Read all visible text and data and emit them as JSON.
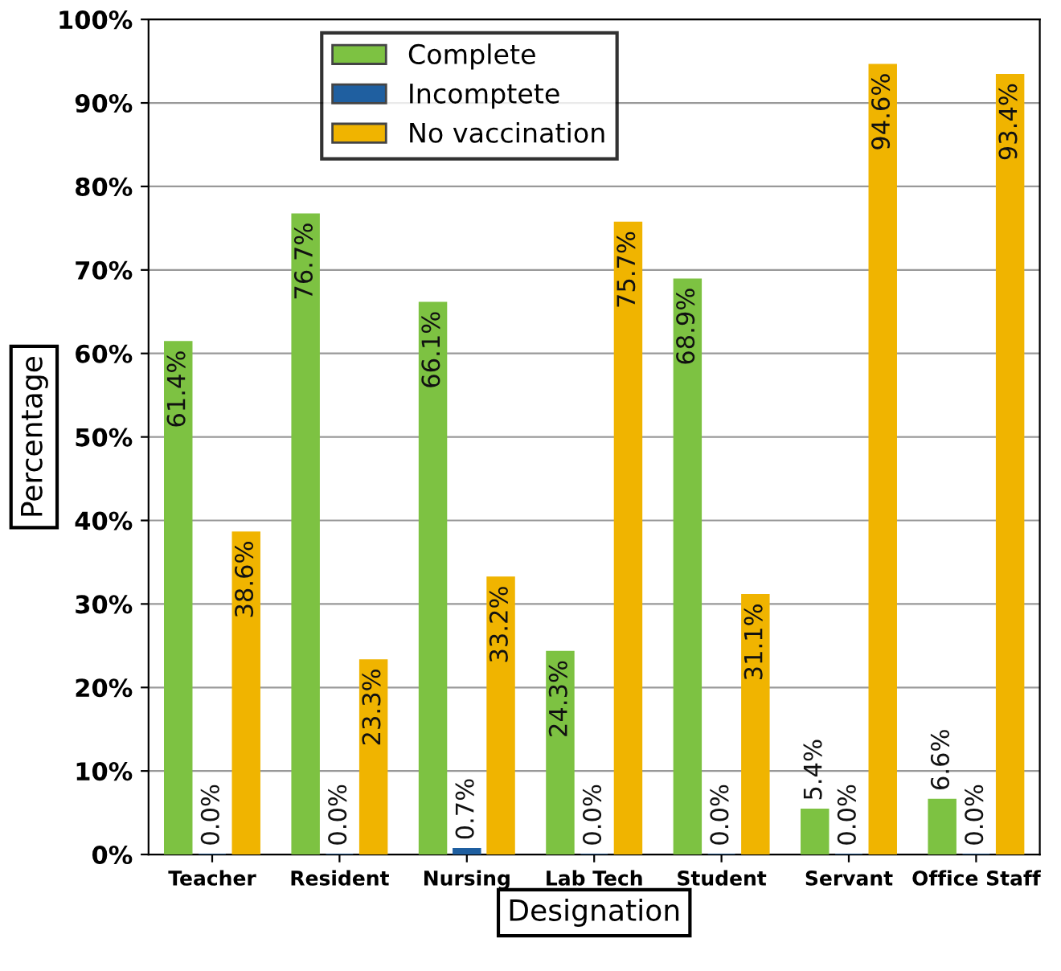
{
  "chart_data": {
    "type": "bar",
    "xlabel": "Designation",
    "ylabel": "Percentage",
    "categories": [
      "Teacher",
      "Resident",
      "Nursing",
      "Lab Tech",
      "Student",
      "Servant",
      "Office Staff"
    ],
    "series": [
      {
        "name": "Complete",
        "color": "#7dc242",
        "values": [
          61.4,
          76.7,
          66.1,
          24.3,
          68.9,
          5.4,
          6.6
        ],
        "value_labels": [
          "61.4%",
          "76.7%",
          "66.1%",
          "24.3%",
          "68.9%",
          "5.4%",
          "6.6%"
        ]
      },
      {
        "name": "Incomptete",
        "color": "#1f5fa0",
        "values": [
          0.0,
          0.0,
          0.7,
          0.0,
          0.0,
          0.0,
          0.0
        ],
        "value_labels": [
          "0.0%",
          "0.0%",
          "0.7%",
          "0.0%",
          "0.0%",
          "0.0%",
          "0.0%"
        ]
      },
      {
        "name": "No vaccination",
        "color": "#f0b400",
        "values": [
          38.6,
          23.3,
          33.2,
          75.7,
          31.1,
          94.6,
          93.4
        ],
        "value_labels": [
          "38.6%",
          "23.3%",
          "33.2%",
          "75.7%",
          "31.1%",
          "94.6%",
          "93.4%"
        ]
      }
    ],
    "ylim": [
      0,
      100
    ],
    "yticks": [
      {
        "value": 0,
        "label": "0%"
      },
      {
        "value": 10,
        "label": "10%"
      },
      {
        "value": 20,
        "label": "20%"
      },
      {
        "value": 30,
        "label": "30%"
      },
      {
        "value": 40,
        "label": "40%"
      },
      {
        "value": 50,
        "label": "50%"
      },
      {
        "value": 60,
        "label": "60%"
      },
      {
        "value": 70,
        "label": "70%"
      },
      {
        "value": 80,
        "label": "80%"
      },
      {
        "value": 90,
        "label": "90%"
      },
      {
        "value": 100,
        "label": "100%"
      }
    ],
    "grid": "y",
    "legend": "top"
  }
}
